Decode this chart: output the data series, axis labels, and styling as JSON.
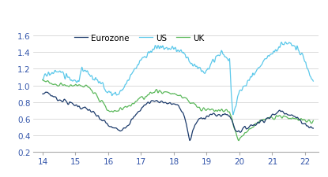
{
  "xlim": [
    13.7,
    22.4
  ],
  "ylim": [
    0.2,
    1.65
  ],
  "yticks": [
    0.2,
    0.4,
    0.6,
    0.8,
    1.0,
    1.2,
    1.4,
    1.6
  ],
  "xticks": [
    14,
    15,
    16,
    17,
    18,
    19,
    20,
    21,
    22
  ],
  "colors": {
    "eurozone": "#1b3a6b",
    "us": "#5bc8ea",
    "uk": "#5ab85a"
  },
  "legend": {
    "eurozone": "Eurozone",
    "us": "US",
    "uk": "UK"
  },
  "linewidth": 0.9,
  "noise_scale": 0.022,
  "noise_sigma": 1.2
}
